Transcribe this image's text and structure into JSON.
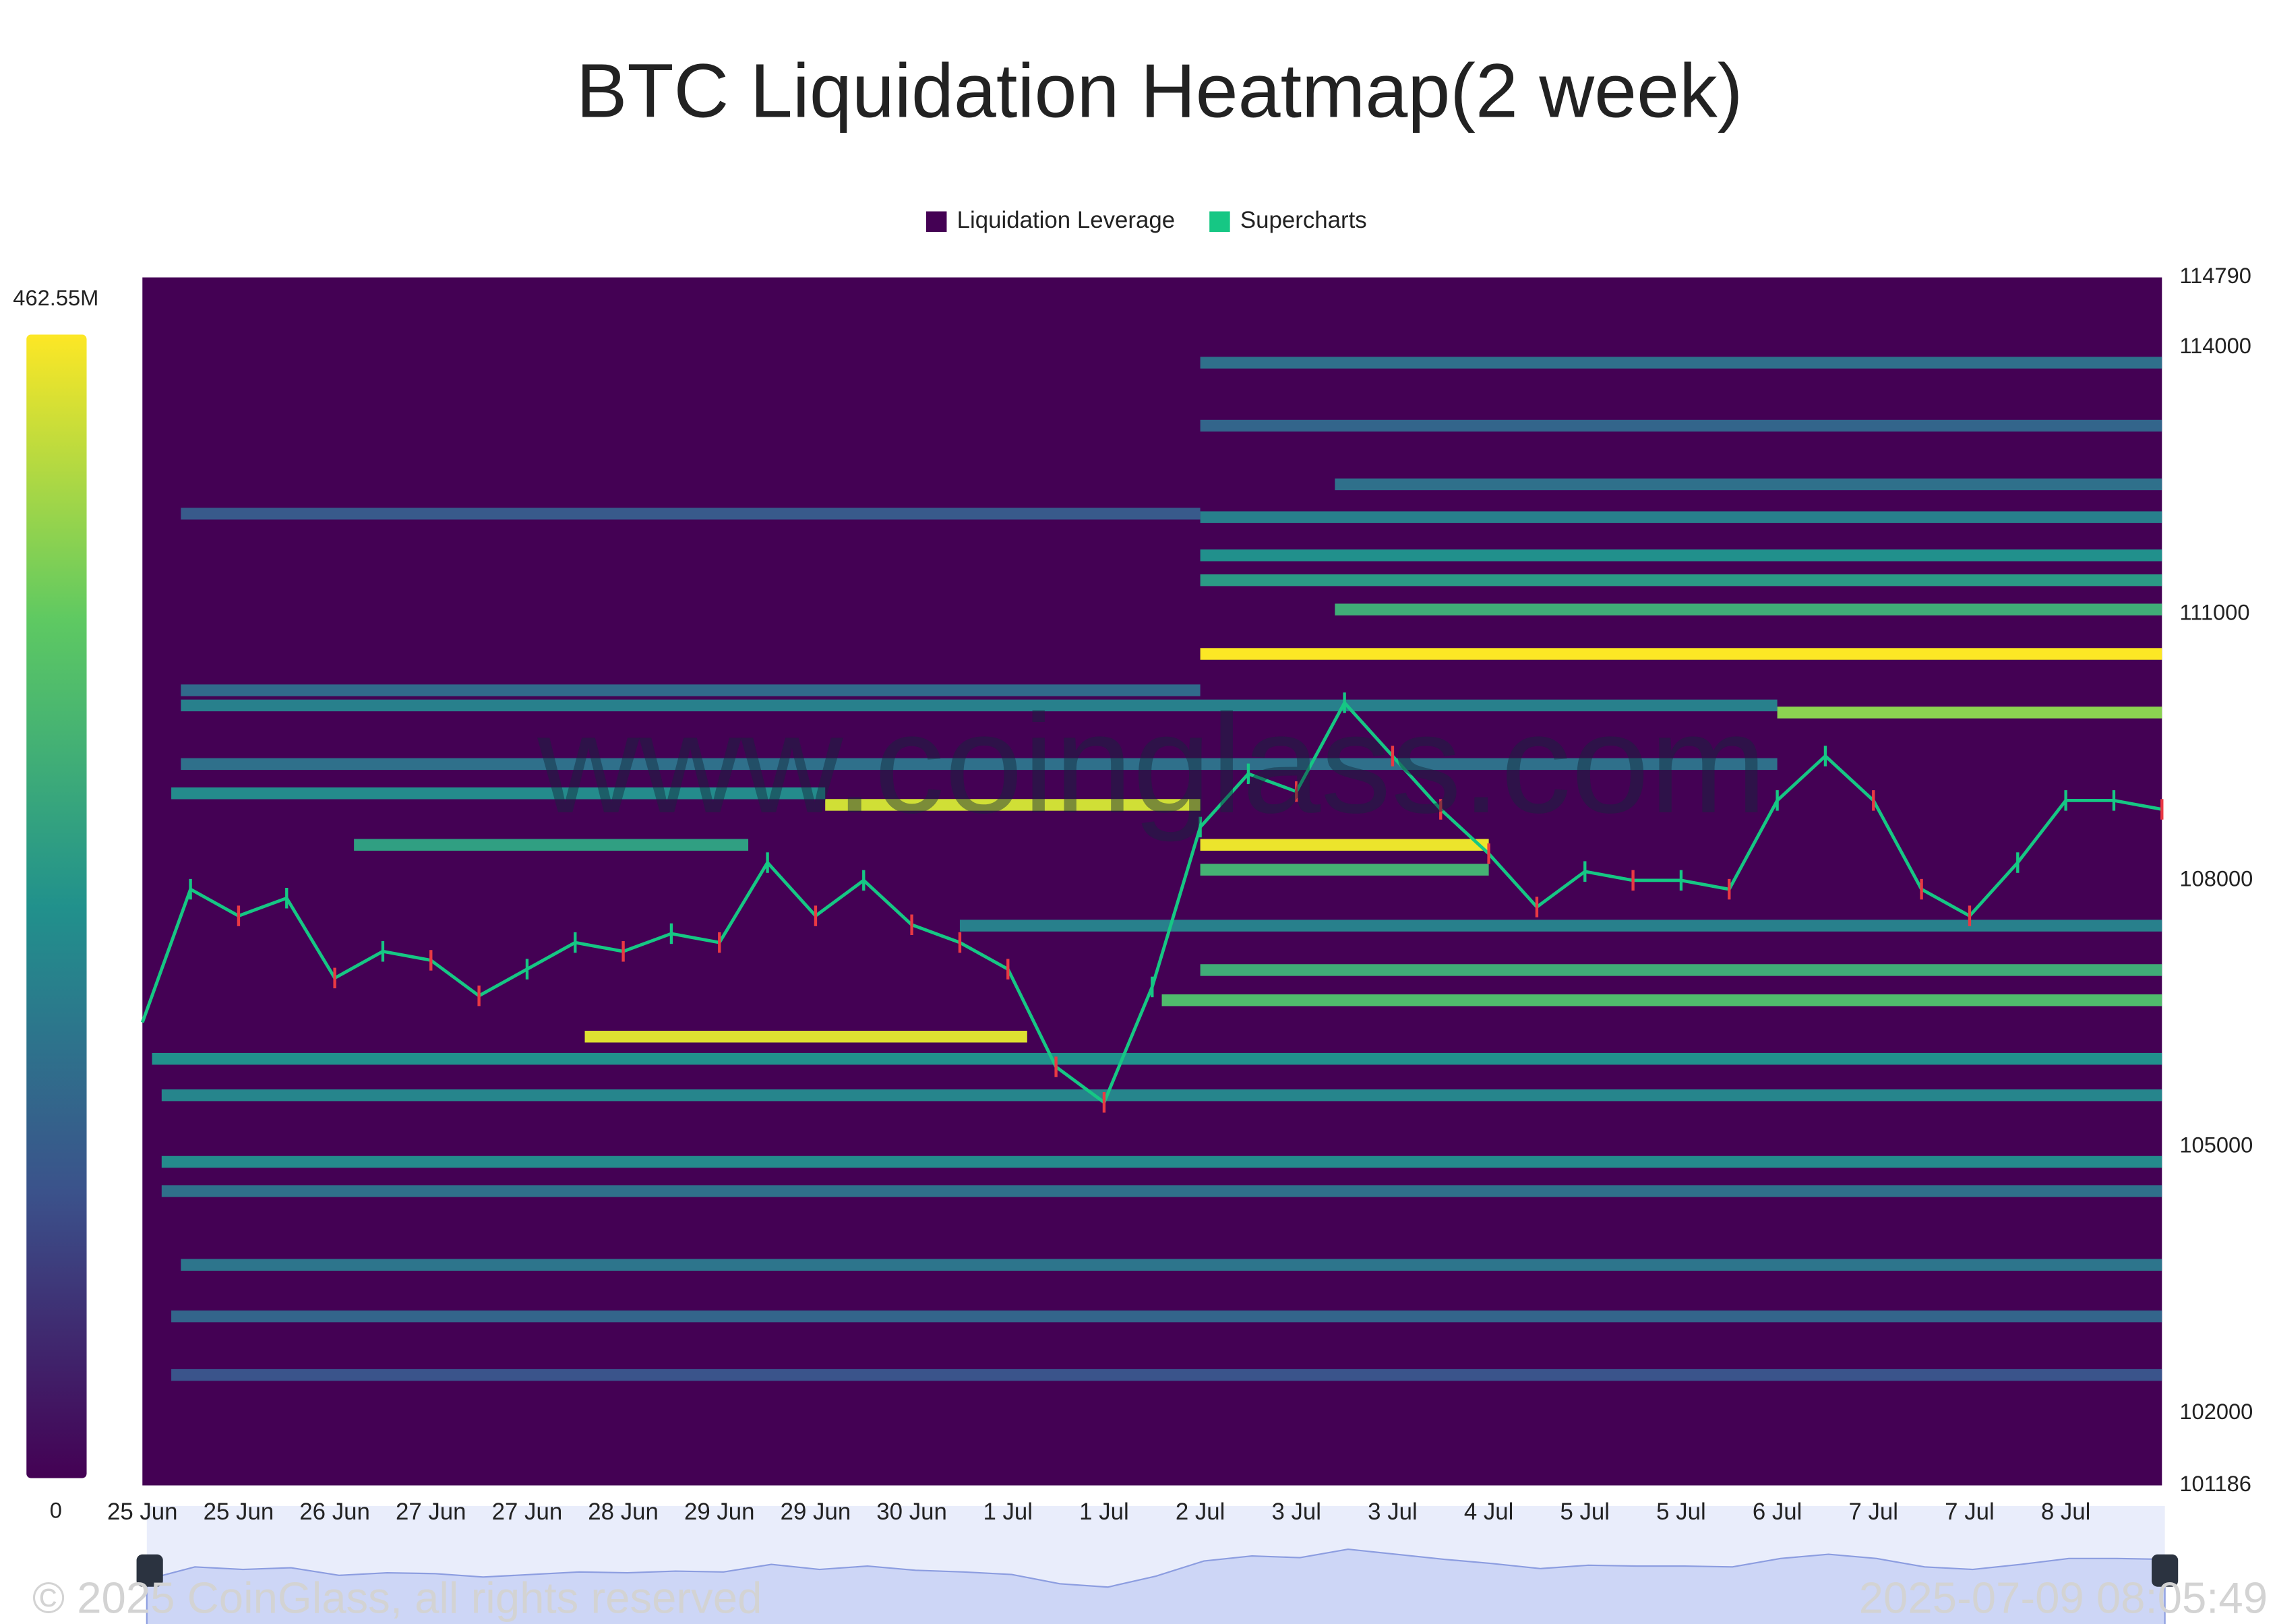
{
  "chart_data": {
    "type": "heatmap",
    "title": "BTC Liquidation Heatmap(2 week)",
    "watermark": "www.coinglass.com",
    "copyright": "© 2025 CoinGlass, all rights reserved",
    "timestamp": "2025-07-09 08:05:49",
    "xlim": [
      0,
      21
    ],
    "xticks": [
      {
        "value": 0,
        "label": "25 Jun"
      },
      {
        "value": 1,
        "label": "25 Jun"
      },
      {
        "value": 2,
        "label": "26 Jun"
      },
      {
        "value": 3,
        "label": "27 Jun"
      },
      {
        "value": 4,
        "label": "27 Jun"
      },
      {
        "value": 5,
        "label": "28 Jun"
      },
      {
        "value": 6,
        "label": "29 Jun"
      },
      {
        "value": 7,
        "label": "29 Jun"
      },
      {
        "value": 8,
        "label": "30 Jun"
      },
      {
        "value": 9,
        "label": "1 Jul"
      },
      {
        "value": 10,
        "label": "1 Jul"
      },
      {
        "value": 11,
        "label": "2 Jul"
      },
      {
        "value": 12,
        "label": "3 Jul"
      },
      {
        "value": 13,
        "label": "3 Jul"
      },
      {
        "value": 14,
        "label": "4 Jul"
      },
      {
        "value": 15,
        "label": "5 Jul"
      },
      {
        "value": 16,
        "label": "5 Jul"
      },
      {
        "value": 17,
        "label": "6 Jul"
      },
      {
        "value": 18,
        "label": "7 Jul"
      },
      {
        "value": 19,
        "label": "7 Jul"
      },
      {
        "value": 20,
        "label": "8 Jul"
      }
    ],
    "ylim": [
      101186,
      114790
    ],
    "yticks": [
      114790,
      114000,
      111000,
      108000,
      105000,
      102000,
      101186
    ],
    "colorbar": {
      "zlim": [
        0,
        462.55
      ],
      "ticks": [
        {
          "value": 462.55,
          "label": "462.55M"
        },
        0
      ],
      "colors": [
        "#440154",
        "#3b528b",
        "#21918c",
        "#5ec962",
        "#fde725"
      ]
    },
    "series": [
      {
        "name": "Liquidation Leverage",
        "color": "#440154",
        "bands": [
          {
            "price": 110550,
            "start": 11,
            "end": 21,
            "value": 462
          },
          {
            "price": 108400,
            "start": 11,
            "end": 14,
            "value": 450
          },
          {
            "price": 108850,
            "start": 7.1,
            "end": 11,
            "value": 430
          },
          {
            "price": 106240,
            "start": 4.6,
            "end": 9.2,
            "value": 440
          },
          {
            "price": 109890,
            "start": 17,
            "end": 21,
            "value": 380
          },
          {
            "price": 106650,
            "start": 10.6,
            "end": 21,
            "value": 320
          },
          {
            "price": 106990,
            "start": 11,
            "end": 21,
            "value": 290
          },
          {
            "price": 108120,
            "start": 11,
            "end": 14,
            "value": 300
          },
          {
            "price": 111050,
            "start": 12.4,
            "end": 21,
            "value": 290
          },
          {
            "price": 111380,
            "start": 11,
            "end": 21,
            "value": 250
          },
          {
            "price": 111660,
            "start": 11,
            "end": 21,
            "value": 230
          },
          {
            "price": 112090,
            "start": 11,
            "end": 21,
            "value": 200
          },
          {
            "price": 112460,
            "start": 12.4,
            "end": 21,
            "value": 170
          },
          {
            "price": 113120,
            "start": 11,
            "end": 21,
            "value": 150
          },
          {
            "price": 113830,
            "start": 11,
            "end": 21,
            "value": 170
          },
          {
            "price": 105990,
            "start": 0.1,
            "end": 21,
            "value": 230
          },
          {
            "price": 105580,
            "start": 0.2,
            "end": 21,
            "value": 210
          },
          {
            "price": 104830,
            "start": 0.2,
            "end": 21,
            "value": 220
          },
          {
            "price": 104500,
            "start": 0.2,
            "end": 21,
            "value": 170
          },
          {
            "price": 103670,
            "start": 0.4,
            "end": 21,
            "value": 180
          },
          {
            "price": 103090,
            "start": 0.3,
            "end": 21,
            "value": 150
          },
          {
            "price": 102430,
            "start": 0.3,
            "end": 21,
            "value": 120
          },
          {
            "price": 108980,
            "start": 0.3,
            "end": 7.1,
            "value": 220
          },
          {
            "price": 109310,
            "start": 0.4,
            "end": 17,
            "value": 170
          },
          {
            "price": 109970,
            "start": 0.4,
            "end": 17,
            "value": 200
          },
          {
            "price": 110140,
            "start": 0.4,
            "end": 11,
            "value": 160
          },
          {
            "price": 112130,
            "start": 0.4,
            "end": 11,
            "value": 130
          },
          {
            "price": 107490,
            "start": 8.5,
            "end": 21,
            "value": 200
          },
          {
            "price": 108400,
            "start": 2.2,
            "end": 6.3,
            "value": 260
          }
        ]
      },
      {
        "name": "Supercharts",
        "color": "#16c784",
        "x": [
          0,
          0.5,
          1,
          1.5,
          2,
          2.5,
          3,
          3.5,
          4,
          4.5,
          5,
          5.5,
          6,
          6.5,
          7,
          7.5,
          8,
          8.5,
          9,
          9.5,
          10,
          10.5,
          11,
          11.5,
          12,
          12.5,
          13,
          13.5,
          14,
          14.5,
          15,
          15.5,
          16,
          16.5,
          17,
          17.5,
          18,
          18.5,
          19,
          19.5,
          20,
          20.5,
          21
        ],
        "values": [
          106400,
          107900,
          107600,
          107800,
          106900,
          107200,
          107100,
          106700,
          107000,
          107300,
          107200,
          107400,
          107300,
          108200,
          107600,
          108000,
          107500,
          107300,
          107000,
          105900,
          105500,
          106800,
          108600,
          109200,
          109000,
          110000,
          109400,
          108800,
          108300,
          107700,
          108100,
          108000,
          108000,
          107900,
          108900,
          109400,
          108900,
          107900,
          107600,
          108200,
          108900,
          108900,
          108800
        ]
      }
    ]
  }
}
